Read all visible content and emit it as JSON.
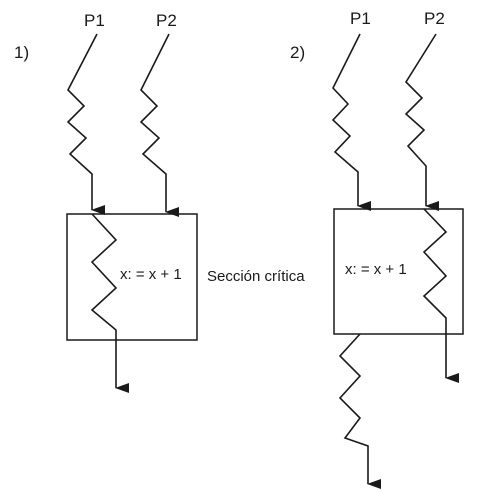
{
  "diagrams": [
    {
      "number": "1)",
      "process_labels": [
        "P1",
        "P2"
      ],
      "box_text": "x: = x + 1"
    },
    {
      "number": "2)",
      "process_labels": [
        "P1",
        "P2"
      ],
      "box_text": "x: = x + 1"
    }
  ],
  "center_label": "Sección crítica",
  "colors": {
    "ink": "#1a1a1a",
    "background": "#ffffff"
  }
}
